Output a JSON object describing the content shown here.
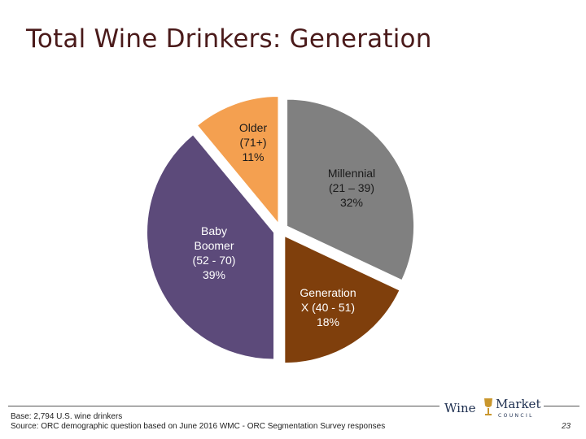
{
  "slide": {
    "title": "Total Wine Drinkers: Generation",
    "base_note": "Base: 2,794 U.S. wine drinkers",
    "source_note": "Source: ORC demographic question based on June 2016 WMC - ORC Segmentation Survey responses",
    "page_number": "23"
  },
  "logo": {
    "word_left": "Wine",
    "word_right": "Market",
    "word_sub": "COUNCIL",
    "colors": {
      "text": "#1e2f50",
      "glass": "#c9962c"
    }
  },
  "chart_data": {
    "type": "pie",
    "title": "",
    "start_angle_deg": 0,
    "direction": "clockwise",
    "slices": [
      {
        "key": "millennial",
        "label_lines": [
          "Millennial",
          "(21 – 39)",
          "32%"
        ],
        "value": 32,
        "color": "#808080",
        "label_color": "#1a1a1a"
      },
      {
        "key": "genx",
        "label_lines": [
          "Generation",
          "X (40 - 51)",
          "18%"
        ],
        "value": 18,
        "color": "#7f3f0c",
        "label_color": "#ffffff"
      },
      {
        "key": "boomer",
        "label_lines": [
          "Baby",
          "Boomer",
          "(52 - 70)",
          "39%"
        ],
        "value": 39,
        "color": "#5c4a7a",
        "label_color": "#ffffff"
      },
      {
        "key": "older",
        "label_lines": [
          "Older",
          "(71+)",
          "11%"
        ],
        "value": 11,
        "color": "#f4a050",
        "label_color": "#1a1a1a"
      }
    ],
    "exploded": true
  }
}
